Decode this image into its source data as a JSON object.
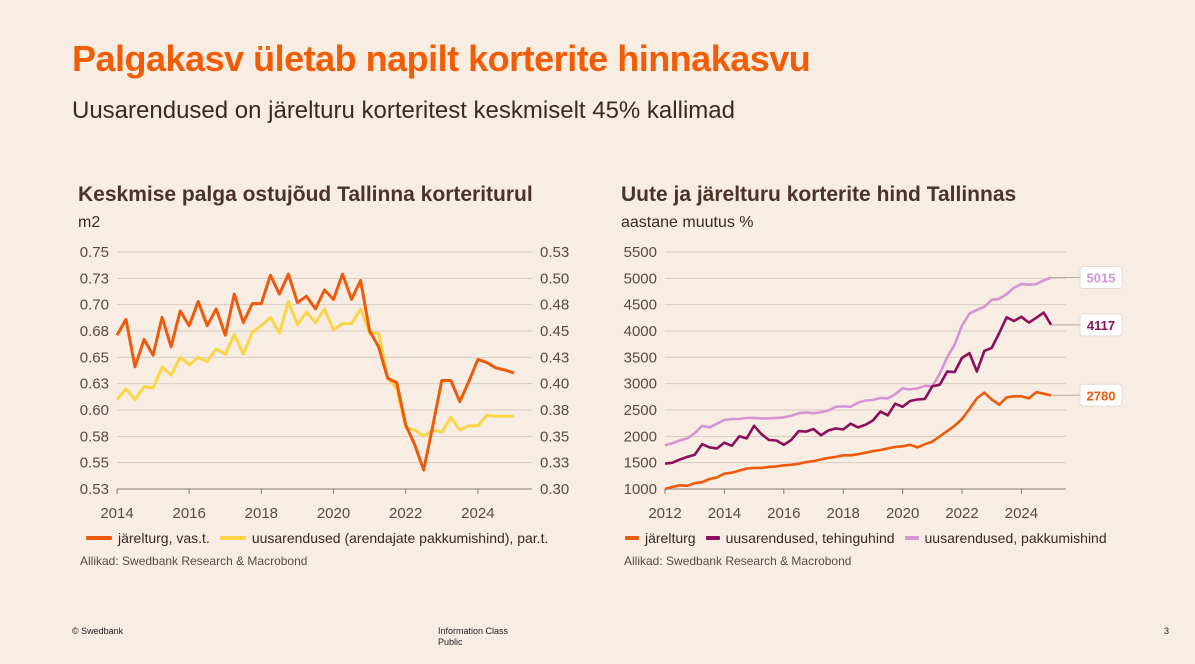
{
  "header": {
    "title": "Palgakasv ületab napilt korterite hinnakasvu",
    "subtitle": "Uusarendused on järelturu korteritest keskmiselt 45% kallimad"
  },
  "left_chart": {
    "title": "Keskmise palga ostujõud Tallinna korteriturul",
    "unit": "m2",
    "legend": [
      "järelturg, vas.t.",
      "uusarendused (arendajate pakkumishind), par.t."
    ],
    "source": "Allikad: Swedbank Research & Macrobond"
  },
  "right_chart": {
    "title": "Uute ja järelturu korterite hind Tallinnas",
    "unit": "aastane muutus %",
    "legend": [
      "järelturg",
      "uusarendused, tehinguhind",
      "uusarendused, pakkumishind"
    ],
    "source": "Allikad: Swedbank Research & Macrobond",
    "end_labels": [
      "5015",
      "4117",
      "2780"
    ]
  },
  "footer": {
    "copyright": "© Swedbank",
    "info_class": "Information Class",
    "info_value": "Public",
    "page": "3"
  },
  "colors": {
    "accent": "#f25c05",
    "orange": "#ee5a0c",
    "yellow": "#fbd447",
    "purple": "#8b0f5b",
    "pink": "#d495d4"
  },
  "chart_data": [
    {
      "type": "line",
      "x_ticks": [
        "2014",
        "2016",
        "2018",
        "2020",
        "2022",
        "2024"
      ],
      "xlim": [
        2014,
        2025.5
      ],
      "y_left_ticks": [
        "0.53",
        "0.55",
        "0.58",
        "0.60",
        "0.63",
        "0.65",
        "0.68",
        "0.70",
        "0.73",
        "0.75"
      ],
      "ylim_left": [
        0.525,
        0.75
      ],
      "y_right_ticks": [
        "0.30",
        "0.33",
        "0.35",
        "0.38",
        "0.40",
        "0.43",
        "0.45",
        "0.48",
        "0.50",
        "0.53"
      ],
      "ylim_right": [
        0.3,
        0.525
      ],
      "series": [
        {
          "name": "järelturg, vas.t.",
          "axis": "left",
          "color": "#ee5a0c",
          "x": [
            2014.0,
            2014.25,
            2014.5,
            2014.75,
            2015.0,
            2015.25,
            2015.5,
            2015.75,
            2016.0,
            2016.25,
            2016.5,
            2016.75,
            2017.0,
            2017.25,
            2017.5,
            2017.75,
            2018.0,
            2018.25,
            2018.5,
            2018.75,
            2019.0,
            2019.25,
            2019.5,
            2019.75,
            2020.0,
            2020.25,
            2020.5,
            2020.75,
            2021.0,
            2021.25,
            2021.5,
            2021.75,
            2022.0,
            2022.25,
            2022.5,
            2022.75,
            2023.0,
            2023.25,
            2023.5,
            2023.75,
            2024.0,
            2024.25,
            2024.5,
            2024.75,
            2025.0
          ],
          "y": [
            0.671,
            0.686,
            0.641,
            0.667,
            0.652,
            0.688,
            0.66,
            0.694,
            0.68,
            0.703,
            0.68,
            0.696,
            0.671,
            0.71,
            0.683,
            0.701,
            0.701,
            0.728,
            0.71,
            0.729,
            0.702,
            0.708,
            0.696,
            0.714,
            0.705,
            0.729,
            0.705,
            0.723,
            0.675,
            0.66,
            0.63,
            0.626,
            0.586,
            0.567,
            0.543,
            0.585,
            0.628,
            0.628,
            0.608,
            0.627,
            0.648,
            0.645,
            0.64,
            0.638,
            0.635
          ]
        },
        {
          "name": "uusarendused (arendajate pakkumishind), par.t.",
          "axis": "right",
          "color": "#fbd447",
          "x": [
            2014.0,
            2014.25,
            2014.5,
            2014.75,
            2015.0,
            2015.25,
            2015.5,
            2015.75,
            2016.0,
            2016.25,
            2016.5,
            2016.75,
            2017.0,
            2017.25,
            2017.5,
            2017.75,
            2018.0,
            2018.25,
            2018.5,
            2018.75,
            2019.0,
            2019.25,
            2019.5,
            2019.75,
            2020.0,
            2020.25,
            2020.5,
            2020.75,
            2021.0,
            2021.25,
            2021.5,
            2021.75,
            2022.0,
            2022.25,
            2022.5,
            2022.75,
            2023.0,
            2023.25,
            2023.5,
            2023.75,
            2024.0,
            2024.25,
            2024.5,
            2024.75,
            2025.0
          ],
          "y": [
            0.385,
            0.395,
            0.385,
            0.397,
            0.396,
            0.416,
            0.408,
            0.425,
            0.418,
            0.425,
            0.421,
            0.433,
            0.428,
            0.447,
            0.428,
            0.449,
            0.455,
            0.463,
            0.448,
            0.478,
            0.456,
            0.468,
            0.458,
            0.471,
            0.451,
            0.457,
            0.457,
            0.471,
            0.448,
            0.448,
            0.406,
            0.395,
            0.358,
            0.356,
            0.35,
            0.356,
            0.354,
            0.368,
            0.356,
            0.36,
            0.36,
            0.37,
            0.369,
            0.369,
            0.369
          ]
        }
      ]
    },
    {
      "type": "line",
      "x_ticks": [
        "2012",
        "2014",
        "2016",
        "2018",
        "2020",
        "2022",
        "2024"
      ],
      "xlim": [
        2012,
        2025.5
      ],
      "y_ticks": [
        "1000",
        "1500",
        "2000",
        "2500",
        "3000",
        "3500",
        "4000",
        "4500",
        "5000",
        "5500"
      ],
      "ylim": [
        1000,
        5500
      ],
      "series": [
        {
          "name": "järelturg",
          "color": "#ee5a0c",
          "end_label": "2780",
          "x": [
            2012.0,
            2012.25,
            2012.5,
            2012.75,
            2013.0,
            2013.25,
            2013.5,
            2013.75,
            2014.0,
            2014.25,
            2014.5,
            2014.75,
            2015.0,
            2015.25,
            2015.5,
            2015.75,
            2016.0,
            2016.25,
            2016.5,
            2016.75,
            2017.0,
            2017.25,
            2017.5,
            2017.75,
            2018.0,
            2018.25,
            2018.5,
            2018.75,
            2019.0,
            2019.25,
            2019.5,
            2019.75,
            2020.0,
            2020.25,
            2020.5,
            2020.75,
            2021.0,
            2021.25,
            2021.5,
            2021.75,
            2022.0,
            2022.25,
            2022.5,
            2022.75,
            2023.0,
            2023.25,
            2023.5,
            2023.75,
            2024.0,
            2024.25,
            2024.5,
            2024.75,
            2025.0
          ],
          "y": [
            1000,
            1040,
            1070,
            1060,
            1110,
            1130,
            1190,
            1220,
            1290,
            1310,
            1350,
            1390,
            1400,
            1400,
            1420,
            1430,
            1450,
            1460,
            1480,
            1510,
            1530,
            1560,
            1590,
            1610,
            1640,
            1640,
            1660,
            1690,
            1720,
            1740,
            1770,
            1800,
            1810,
            1840,
            1790,
            1850,
            1900,
            2000,
            2100,
            2200,
            2330,
            2520,
            2720,
            2830,
            2700,
            2600,
            2740,
            2760,
            2760,
            2720,
            2840,
            2810,
            2780
          ]
        },
        {
          "name": "uusarendused, tehinguhind",
          "color": "#8b0f5b",
          "end_label": "4117",
          "x": [
            2012.0,
            2012.25,
            2012.5,
            2012.75,
            2013.0,
            2013.25,
            2013.5,
            2013.75,
            2014.0,
            2014.25,
            2014.5,
            2014.75,
            2015.0,
            2015.25,
            2015.5,
            2015.75,
            2016.0,
            2016.25,
            2016.5,
            2016.75,
            2017.0,
            2017.25,
            2017.5,
            2017.75,
            2018.0,
            2018.25,
            2018.5,
            2018.75,
            2019.0,
            2019.25,
            2019.5,
            2019.75,
            2020.0,
            2020.25,
            2020.5,
            2020.75,
            2021.0,
            2021.25,
            2021.5,
            2021.75,
            2022.0,
            2022.25,
            2022.5,
            2022.75,
            2023.0,
            2023.25,
            2023.5,
            2023.75,
            2024.0,
            2024.25,
            2024.5,
            2024.75,
            2025.0
          ],
          "y": [
            1480,
            1500,
            1560,
            1610,
            1650,
            1850,
            1790,
            1770,
            1880,
            1820,
            2000,
            1960,
            2200,
            2040,
            1930,
            1920,
            1840,
            1930,
            2100,
            2090,
            2140,
            2020,
            2110,
            2150,
            2130,
            2240,
            2170,
            2220,
            2300,
            2470,
            2400,
            2620,
            2560,
            2670,
            2700,
            2710,
            2950,
            2980,
            3230,
            3220,
            3490,
            3580,
            3230,
            3620,
            3680,
            3960,
            4260,
            4190,
            4270,
            4160,
            4250,
            4350,
            4117
          ]
        },
        {
          "name": "uusarendused, pakkumishind",
          "color": "#d495d4",
          "end_label": "5015",
          "x": [
            2012.0,
            2012.25,
            2012.5,
            2012.75,
            2013.0,
            2013.25,
            2013.5,
            2013.75,
            2014.0,
            2014.25,
            2014.5,
            2014.75,
            2015.0,
            2015.25,
            2015.5,
            2015.75,
            2016.0,
            2016.25,
            2016.5,
            2016.75,
            2017.0,
            2017.25,
            2017.5,
            2017.75,
            2018.0,
            2018.25,
            2018.5,
            2018.75,
            2019.0,
            2019.25,
            2019.5,
            2019.75,
            2020.0,
            2020.25,
            2020.5,
            2020.75,
            2021.0,
            2021.25,
            2021.5,
            2021.75,
            2022.0,
            2022.25,
            2022.5,
            2022.75,
            2023.0,
            2023.25,
            2023.5,
            2023.75,
            2024.0,
            2024.25,
            2024.5,
            2024.75,
            2025.0
          ],
          "y": [
            1830,
            1870,
            1920,
            1960,
            2060,
            2200,
            2170,
            2240,
            2310,
            2330,
            2330,
            2350,
            2350,
            2340,
            2340,
            2350,
            2360,
            2390,
            2440,
            2450,
            2440,
            2460,
            2490,
            2560,
            2570,
            2560,
            2640,
            2680,
            2690,
            2730,
            2720,
            2800,
            2910,
            2890,
            2910,
            2960,
            2950,
            3190,
            3500,
            3740,
            4100,
            4330,
            4400,
            4460,
            4590,
            4610,
            4700,
            4820,
            4890,
            4880,
            4890,
            4960,
            5015
          ]
        }
      ]
    }
  ]
}
